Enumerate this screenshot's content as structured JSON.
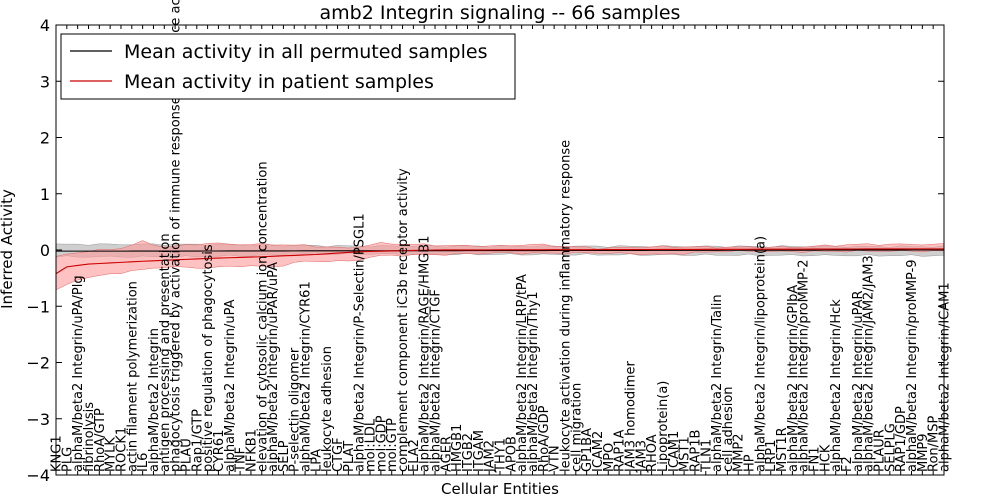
{
  "chart_data": {
    "type": "line",
    "title": "amb2 Integrin signaling -- 66 samples",
    "xlabel": "Cellular Entities",
    "ylabel": "Inferred Activity",
    "ylim": [
      -4,
      4
    ],
    "yticks": [
      -4,
      -3,
      -2,
      -1,
      0,
      1,
      2,
      3,
      4
    ],
    "ytick_labels": [
      "−4",
      "−3",
      "−2",
      "−1",
      "0",
      "1",
      "2",
      "3",
      "4"
    ],
    "grid": false,
    "legend_position": "top-left",
    "categories": [
      "KNG1",
      "PLG",
      "alphaM/beta2 Integrin/uPA/Plg",
      "fibrinolysis",
      "RhoA/GTP",
      "MYLK",
      "ROCK1",
      "actin filament polymerization",
      "IL6",
      "alphaM/beta2 Integrin",
      "antigen processing and presentation",
      "phagocytosis triggered by activation of immune response cell surface activating receptor",
      "PLAU",
      "Rap1/GTP",
      "positive regulation of phagocytosis",
      "CYR61",
      "alphaM/beta2 Integrin/uPA",
      "TNF",
      "NFKB1",
      "elevation of cytosolic calcium ion concentration",
      "alphaM/beta2 Integrin/uPAR/uPA",
      "SELP",
      "P-selectin oligomer",
      "alphaM/beta2 Integrin/CYR61",
      "LPA",
      "leukocyte adhesion",
      "CTGF",
      "PLAT",
      "alphaM/beta2 Integrin/P-Selectin/PSGL1",
      "mol:LDL",
      "mol:GDP",
      "mol:GTP",
      "complement component iC3b receptor activity",
      "ELA2",
      "alphaM/beta2 Integrin/RAGE/HMGB1",
      "alphaM/beta2 Integrin/CTGF",
      "AGER",
      "HMGB1",
      "ITGB2",
      "ITGAM",
      "JAM2",
      "THY1",
      "APOB",
      "alphaM/beta2 Integrin/LRP/tPA",
      "alphaM/beta2 Integrin/Thy1",
      "RhoA/GDP",
      "VTN",
      "leukocyte activation during inflammatory response",
      "cell migration",
      "GP1BA",
      "ICAM2",
      "MPO",
      "RAP1A",
      "JAM3 homodimer",
      "JAM3",
      "RHOA",
      "Lipoprotein(a)",
      "ICAM1",
      "MST1",
      "RAP1B",
      "TLN1",
      "alphaM/beta2 Integrin/Talin",
      "cell adhesion",
      "MMP2",
      "HP",
      "alphaM/beta2 Integrin/lipoprotein(a)",
      "LRP1",
      "MST1R",
      "alphaM/beta2 Integrin/GPIbA",
      "alphaM/beta2 Integrin/proMMP-2",
      "FN1",
      "HCK",
      "alphaM/beta2 Integrin/Hck",
      "F2",
      "alphaM/beta2 Integrin/uPAR",
      "alphaM/beta2 Integrin/JAM2/JAM3",
      "PLAUR",
      "SELPLG",
      "RAP1/GDP",
      "alphaM/beta2 Integrin/proMMP-9",
      "MMP9",
      "Ron/MSP",
      "alphaM/beta2 Integrin/ICAM1"
    ],
    "series": [
      {
        "name": "Mean activity in all permuted samples",
        "color": "#000000",
        "band_color": "#bfbfbf",
        "anchors": [
          [
            0,
            -0.02
          ],
          [
            3,
            -0.02
          ],
          [
            6,
            -0.02
          ],
          [
            79,
            0.0
          ]
        ],
        "band": [
          [
            0,
            -0.12,
            0.1
          ],
          [
            12,
            -0.12,
            0.1
          ],
          [
            27,
            -0.07,
            0.07
          ],
          [
            79,
            -0.1,
            0.06
          ]
        ]
      },
      {
        "name": "Mean activity in patient samples",
        "color": "#cc0000",
        "band_color": "#ff9999",
        "anchors": [
          [
            0,
            -0.42
          ],
          [
            1,
            -0.3
          ],
          [
            3,
            -0.25
          ],
          [
            8,
            -0.2
          ],
          [
            14,
            -0.15
          ],
          [
            19,
            -0.12
          ],
          [
            24,
            -0.08
          ],
          [
            28,
            -0.03
          ],
          [
            35,
            0.0
          ],
          [
            79,
            0.02
          ]
        ],
        "band": [
          [
            0,
            -0.72,
            -0.12
          ],
          [
            2,
            -0.52,
            -0.04
          ],
          [
            6,
            -0.4,
            0.03
          ],
          [
            8,
            -0.35,
            0.15
          ],
          [
            10,
            -0.3,
            0.05
          ],
          [
            14,
            -0.32,
            0.12
          ],
          [
            17,
            -0.28,
            0.1
          ],
          [
            20,
            -0.3,
            0.1
          ],
          [
            23,
            -0.2,
            0.08
          ],
          [
            27,
            -0.2,
            0.03
          ],
          [
            30,
            -0.1,
            0.12
          ],
          [
            36,
            -0.08,
            0.08
          ],
          [
            41,
            -0.05,
            0.07
          ],
          [
            44,
            -0.06,
            0.1
          ],
          [
            50,
            -0.05,
            0.03
          ],
          [
            56,
            -0.08,
            0.06
          ],
          [
            62,
            -0.02,
            0.05
          ],
          [
            68,
            -0.03,
            0.05
          ],
          [
            74,
            -0.02,
            0.1
          ],
          [
            79,
            -0.02,
            0.1
          ]
        ]
      }
    ]
  }
}
